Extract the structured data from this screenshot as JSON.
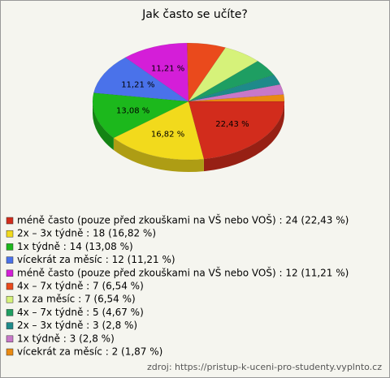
{
  "chart_data": {
    "type": "pie",
    "title": "Jak často se učíte?",
    "categories": [
      "méně často (pouze před zkouškami na VŠ nebo VOŠ) : 24 (22,43 %)",
      "2x – 3x týdně : 18 (16,82 %)",
      "1x týdně : 14 (13,08 %)",
      "vícekrát za měsíc : 12 (11,21 %)",
      "méně často (pouze před zkouškami na VŠ nebo VOŠ) : 12 (11,21 %)",
      "4x – 7x týdně : 7 (6,54 %)",
      "1x za měsíc : 7 (6,54 %)",
      "4x – 7x týdně : 5 (4,67 %)",
      "2x – 3x týdně : 3 (2,8 %)",
      "1x týdně : 3 (2,8 %)",
      "vícekrát za měsíc : 2 (1,87 %)"
    ],
    "values": [
      22.43,
      16.82,
      13.08,
      11.21,
      11.21,
      6.54,
      6.54,
      4.67,
      2.8,
      2.8,
      1.87
    ],
    "value_labels": [
      "22,43 %",
      "16,82 %",
      "13,08 %",
      "11,21 %",
      "11,21 %",
      null,
      null,
      null,
      null,
      null,
      null
    ],
    "colors": [
      "#d22c1c",
      "#f2da1c",
      "#1cb81c",
      "#4a72ea",
      "#d41ed8",
      "#ea4a1c",
      "#d6f27a",
      "#1e9e62",
      "#1e8a8a",
      "#c878c8",
      "#ea8a12"
    ],
    "source": "zdroj: https://pristup-k-uceni-pro-studenty.vyplnto.cz"
  }
}
